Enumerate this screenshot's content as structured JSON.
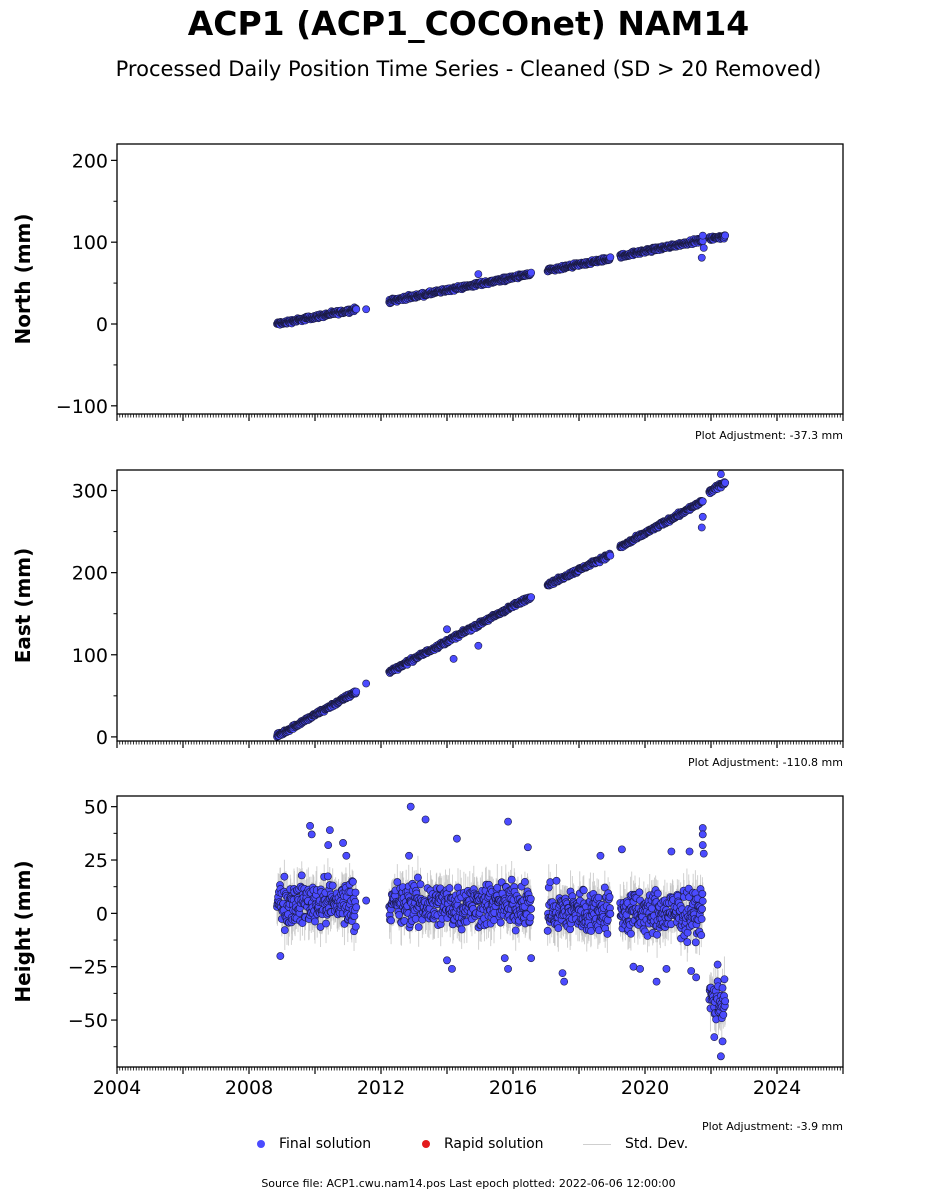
{
  "title": "ACP1 (ACP1_COCOnet) NAM14",
  "subtitle": "Processed Daily Position Time Series - Cleaned (SD > 20 Removed)",
  "legend": {
    "final": "Final solution",
    "rapid": "Rapid solution",
    "stddev": "Std. Dev."
  },
  "footer": "Source file: ACP1.cwu.nam14.pos  Last epoch plotted: 2022-06-06 12:00:00",
  "colors": {
    "final": "#4b4bff",
    "final_edge": "#1a1a40",
    "rapid": "#e31a1c",
    "stddev": "#bdbdbd"
  },
  "chart_data": [
    {
      "type": "scatter",
      "ylabel": "North (mm)",
      "adjustment": "Plot Adjustment: -37.3 mm",
      "xlim": [
        2004,
        2026
      ],
      "ylim": [
        -110,
        220
      ],
      "yticks": [
        -100,
        0,
        100,
        200
      ],
      "ytick_labels": [
        "−100",
        "0",
        "100",
        "200"
      ],
      "segments": [
        {
          "x": [
            2008.85,
            2011.25
          ],
          "y": [
            0,
            18
          ],
          "sd": 2.5,
          "jitter": 2
        },
        {
          "x": [
            2012.25,
            2016.55
          ],
          "y": [
            28,
            61
          ],
          "sd": 2.5,
          "jitter": 2
        },
        {
          "x": [
            2017.05,
            2018.95
          ],
          "y": [
            65,
            80
          ],
          "sd": 3,
          "jitter": 2
        },
        {
          "x": [
            2019.25,
            2021.75
          ],
          "y": [
            83,
            103
          ],
          "sd": 3,
          "jitter": 2
        },
        {
          "x": [
            2021.95,
            2022.43
          ],
          "y": [
            104,
            107
          ],
          "sd": 3,
          "jitter": 2
        }
      ],
      "outliers": [
        {
          "x": 2014.95,
          "y": 61
        },
        {
          "x": 2021.72,
          "y": 81
        },
        {
          "x": 2021.78,
          "y": 93
        },
        {
          "x": 2021.75,
          "y": 108
        },
        {
          "x": 2011.55,
          "y": 18
        }
      ]
    },
    {
      "type": "scatter",
      "ylabel": "East (mm)",
      "adjustment": "Plot Adjustment: -110.8 mm",
      "xlim": [
        2004,
        2026
      ],
      "ylim": [
        -5,
        325
      ],
      "yticks": [
        0,
        100,
        200,
        300
      ],
      "ytick_labels": [
        "0",
        "100",
        "200",
        "300"
      ],
      "segments": [
        {
          "x": [
            2008.85,
            2011.25
          ],
          "y": [
            1,
            55
          ],
          "sd": 2.5,
          "jitter": 2
        },
        {
          "x": [
            2012.25,
            2016.55
          ],
          "y": [
            79,
            171
          ],
          "sd": 2.5,
          "jitter": 2
        },
        {
          "x": [
            2017.05,
            2018.95
          ],
          "y": [
            185,
            222
          ],
          "sd": 3,
          "jitter": 2
        },
        {
          "x": [
            2019.25,
            2021.75
          ],
          "y": [
            231,
            287
          ],
          "sd": 3,
          "jitter": 2
        },
        {
          "x": [
            2021.95,
            2022.43
          ],
          "y": [
            298,
            310
          ],
          "sd": 3,
          "jitter": 2
        }
      ],
      "outliers": [
        {
          "x": 2011.55,
          "y": 65
        },
        {
          "x": 2014.2,
          "y": 95
        },
        {
          "x": 2014.95,
          "y": 111
        },
        {
          "x": 2014.0,
          "y": 131
        },
        {
          "x": 2021.72,
          "y": 255
        },
        {
          "x": 2021.75,
          "y": 268
        },
        {
          "x": 2022.3,
          "y": 320
        }
      ]
    },
    {
      "type": "scatter",
      "ylabel": "Height (mm)",
      "adjustment": "Plot Adjustment: -3.9 mm",
      "xlim": [
        2004,
        2026
      ],
      "ylim": [
        -72,
        55
      ],
      "yticks": [
        -50,
        -25,
        0,
        25,
        50
      ],
      "ytick_labels": [
        "−50",
        "−25",
        "0",
        "25",
        "50"
      ],
      "xticks": [
        2004,
        2008,
        2012,
        2016,
        2020,
        2024
      ],
      "xtick_labels": [
        "2004",
        "2008",
        "2012",
        "2016",
        "2020",
        "2024"
      ],
      "segments": [
        {
          "x": [
            2008.85,
            2011.25
          ],
          "y": [
            5,
            5
          ],
          "sd": 8,
          "jitter": 9
        },
        {
          "x": [
            2012.25,
            2016.55
          ],
          "y": [
            4,
            4
          ],
          "sd": 8,
          "jitter": 9
        },
        {
          "x": [
            2017.05,
            2018.95
          ],
          "y": [
            1,
            1
          ],
          "sd": 8,
          "jitter": 9
        },
        {
          "x": [
            2019.25,
            2021.75
          ],
          "y": [
            0,
            0
          ],
          "sd": 8,
          "jitter": 9
        },
        {
          "x": [
            2021.95,
            2022.43
          ],
          "y": [
            -40,
            -40
          ],
          "sd": 8,
          "jitter": 9
        }
      ],
      "outliers": [
        {
          "x": 2008.95,
          "y": -20
        },
        {
          "x": 2009.85,
          "y": 41
        },
        {
          "x": 2009.9,
          "y": 37
        },
        {
          "x": 2010.45,
          "y": 39
        },
        {
          "x": 2010.4,
          "y": 32
        },
        {
          "x": 2010.85,
          "y": 33
        },
        {
          "x": 2010.95,
          "y": 27
        },
        {
          "x": 2011.55,
          "y": 6
        },
        {
          "x": 2012.9,
          "y": 50
        },
        {
          "x": 2012.85,
          "y": 27
        },
        {
          "x": 2013.35,
          "y": 44
        },
        {
          "x": 2014.3,
          "y": 35
        },
        {
          "x": 2014.0,
          "y": -22
        },
        {
          "x": 2014.15,
          "y": -26
        },
        {
          "x": 2015.85,
          "y": 43
        },
        {
          "x": 2015.75,
          "y": -21
        },
        {
          "x": 2015.85,
          "y": -26
        },
        {
          "x": 2016.45,
          "y": 31
        },
        {
          "x": 2016.55,
          "y": -21
        },
        {
          "x": 2017.5,
          "y": -28
        },
        {
          "x": 2017.55,
          "y": -32
        },
        {
          "x": 2018.65,
          "y": 27
        },
        {
          "x": 2019.3,
          "y": 30
        },
        {
          "x": 2019.65,
          "y": -25
        },
        {
          "x": 2019.85,
          "y": -26
        },
        {
          "x": 2020.35,
          "y": -32
        },
        {
          "x": 2020.65,
          "y": -26
        },
        {
          "x": 2020.8,
          "y": 29
        },
        {
          "x": 2021.4,
          "y": -27
        },
        {
          "x": 2021.55,
          "y": -30
        },
        {
          "x": 2021.35,
          "y": 29
        },
        {
          "x": 2021.75,
          "y": 40
        },
        {
          "x": 2021.75,
          "y": 37
        },
        {
          "x": 2021.75,
          "y": 32
        },
        {
          "x": 2021.78,
          "y": 28
        },
        {
          "x": 2022.3,
          "y": -67
        },
        {
          "x": 2022.35,
          "y": -60
        },
        {
          "x": 2022.1,
          "y": -58
        },
        {
          "x": 2022.2,
          "y": -24
        }
      ]
    }
  ]
}
